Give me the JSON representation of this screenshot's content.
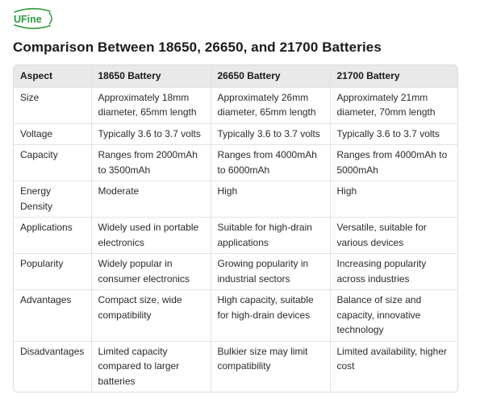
{
  "brand": {
    "name": "UFine",
    "accent": "#2e9a3b"
  },
  "title": "Comparison Between 18650, 26650, and 21700 Batteries",
  "table": {
    "headers": [
      "Aspect",
      "18650 Battery",
      "26650 Battery",
      "21700 Battery"
    ],
    "rows": [
      [
        "Size",
        "Approximately 18mm diameter, 65mm length",
        "Approximately 26mm diameter, 65mm length",
        "Approximately 21mm diameter, 70mm length"
      ],
      [
        "Voltage",
        "Typically 3.6 to 3.7 volts",
        "Typically 3.6 to 3.7 volts",
        "Typically 3.6 to 3.7 volts"
      ],
      [
        "Capacity",
        "Ranges from 2000mAh to 3500mAh",
        "Ranges from 4000mAh to 6000mAh",
        "Ranges from 4000mAh to 5000mAh"
      ],
      [
        "Energy Density",
        "Moderate",
        "High",
        "High"
      ],
      [
        "Applications",
        "Widely used in portable electronics",
        "Suitable for high-drain applications",
        "Versatile, suitable for various devices"
      ],
      [
        "Popularity",
        "Widely popular in consumer electronics",
        "Growing popularity in industrial sectors",
        "Increasing popularity across industries"
      ],
      [
        "Advantages",
        "Compact size, wide compatibility",
        "High capacity, suitable for high-drain devices",
        "Balance of size and capacity, innovative technology"
      ],
      [
        "Disadvantages",
        "Limited capacity compared to larger batteries",
        "Bulkier size may limit compatibility",
        "Limited availability, higher cost"
      ]
    ]
  }
}
